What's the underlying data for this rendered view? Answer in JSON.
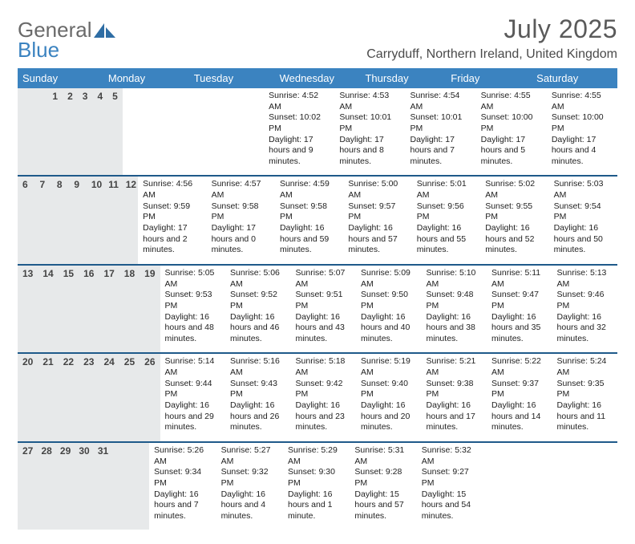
{
  "logo": {
    "general": "General",
    "blue": "Blue"
  },
  "title": "July 2025",
  "location": "Carryduff, Northern Ireland, United Kingdom",
  "colors": {
    "header_bar": "#3b83c0",
    "week_divider": "#1f5a8a",
    "daynum_bg": "#e7e9ea",
    "title_color": "#5a5a5a",
    "text_color": "#222222",
    "background": "#ffffff"
  },
  "typography": {
    "title_fontsize": 32,
    "location_fontsize": 16,
    "dow_fontsize": 13,
    "daynum_fontsize": 12,
    "body_fontsize": 10.5,
    "font_family": "Arial"
  },
  "dow": [
    "Sunday",
    "Monday",
    "Tuesday",
    "Wednesday",
    "Thursday",
    "Friday",
    "Saturday"
  ],
  "weeks": [
    [
      {
        "n": "",
        "sr": "",
        "ss": "",
        "dl": ""
      },
      {
        "n": "",
        "sr": "",
        "ss": "",
        "dl": ""
      },
      {
        "n": "1",
        "sr": "Sunrise: 4:52 AM",
        "ss": "Sunset: 10:02 PM",
        "dl": "Daylight: 17 hours and 9 minutes."
      },
      {
        "n": "2",
        "sr": "Sunrise: 4:53 AM",
        "ss": "Sunset: 10:01 PM",
        "dl": "Daylight: 17 hours and 8 minutes."
      },
      {
        "n": "3",
        "sr": "Sunrise: 4:54 AM",
        "ss": "Sunset: 10:01 PM",
        "dl": "Daylight: 17 hours and 7 minutes."
      },
      {
        "n": "4",
        "sr": "Sunrise: 4:55 AM",
        "ss": "Sunset: 10:00 PM",
        "dl": "Daylight: 17 hours and 5 minutes."
      },
      {
        "n": "5",
        "sr": "Sunrise: 4:55 AM",
        "ss": "Sunset: 10:00 PM",
        "dl": "Daylight: 17 hours and 4 minutes."
      }
    ],
    [
      {
        "n": "6",
        "sr": "Sunrise: 4:56 AM",
        "ss": "Sunset: 9:59 PM",
        "dl": "Daylight: 17 hours and 2 minutes."
      },
      {
        "n": "7",
        "sr": "Sunrise: 4:57 AM",
        "ss": "Sunset: 9:58 PM",
        "dl": "Daylight: 17 hours and 0 minutes."
      },
      {
        "n": "8",
        "sr": "Sunrise: 4:59 AM",
        "ss": "Sunset: 9:58 PM",
        "dl": "Daylight: 16 hours and 59 minutes."
      },
      {
        "n": "9",
        "sr": "Sunrise: 5:00 AM",
        "ss": "Sunset: 9:57 PM",
        "dl": "Daylight: 16 hours and 57 minutes."
      },
      {
        "n": "10",
        "sr": "Sunrise: 5:01 AM",
        "ss": "Sunset: 9:56 PM",
        "dl": "Daylight: 16 hours and 55 minutes."
      },
      {
        "n": "11",
        "sr": "Sunrise: 5:02 AM",
        "ss": "Sunset: 9:55 PM",
        "dl": "Daylight: 16 hours and 52 minutes."
      },
      {
        "n": "12",
        "sr": "Sunrise: 5:03 AM",
        "ss": "Sunset: 9:54 PM",
        "dl": "Daylight: 16 hours and 50 minutes."
      }
    ],
    [
      {
        "n": "13",
        "sr": "Sunrise: 5:05 AM",
        "ss": "Sunset: 9:53 PM",
        "dl": "Daylight: 16 hours and 48 minutes."
      },
      {
        "n": "14",
        "sr": "Sunrise: 5:06 AM",
        "ss": "Sunset: 9:52 PM",
        "dl": "Daylight: 16 hours and 46 minutes."
      },
      {
        "n": "15",
        "sr": "Sunrise: 5:07 AM",
        "ss": "Sunset: 9:51 PM",
        "dl": "Daylight: 16 hours and 43 minutes."
      },
      {
        "n": "16",
        "sr": "Sunrise: 5:09 AM",
        "ss": "Sunset: 9:50 PM",
        "dl": "Daylight: 16 hours and 40 minutes."
      },
      {
        "n": "17",
        "sr": "Sunrise: 5:10 AM",
        "ss": "Sunset: 9:48 PM",
        "dl": "Daylight: 16 hours and 38 minutes."
      },
      {
        "n": "18",
        "sr": "Sunrise: 5:11 AM",
        "ss": "Sunset: 9:47 PM",
        "dl": "Daylight: 16 hours and 35 minutes."
      },
      {
        "n": "19",
        "sr": "Sunrise: 5:13 AM",
        "ss": "Sunset: 9:46 PM",
        "dl": "Daylight: 16 hours and 32 minutes."
      }
    ],
    [
      {
        "n": "20",
        "sr": "Sunrise: 5:14 AM",
        "ss": "Sunset: 9:44 PM",
        "dl": "Daylight: 16 hours and 29 minutes."
      },
      {
        "n": "21",
        "sr": "Sunrise: 5:16 AM",
        "ss": "Sunset: 9:43 PM",
        "dl": "Daylight: 16 hours and 26 minutes."
      },
      {
        "n": "22",
        "sr": "Sunrise: 5:18 AM",
        "ss": "Sunset: 9:42 PM",
        "dl": "Daylight: 16 hours and 23 minutes."
      },
      {
        "n": "23",
        "sr": "Sunrise: 5:19 AM",
        "ss": "Sunset: 9:40 PM",
        "dl": "Daylight: 16 hours and 20 minutes."
      },
      {
        "n": "24",
        "sr": "Sunrise: 5:21 AM",
        "ss": "Sunset: 9:38 PM",
        "dl": "Daylight: 16 hours and 17 minutes."
      },
      {
        "n": "25",
        "sr": "Sunrise: 5:22 AM",
        "ss": "Sunset: 9:37 PM",
        "dl": "Daylight: 16 hours and 14 minutes."
      },
      {
        "n": "26",
        "sr": "Sunrise: 5:24 AM",
        "ss": "Sunset: 9:35 PM",
        "dl": "Daylight: 16 hours and 11 minutes."
      }
    ],
    [
      {
        "n": "27",
        "sr": "Sunrise: 5:26 AM",
        "ss": "Sunset: 9:34 PM",
        "dl": "Daylight: 16 hours and 7 minutes."
      },
      {
        "n": "28",
        "sr": "Sunrise: 5:27 AM",
        "ss": "Sunset: 9:32 PM",
        "dl": "Daylight: 16 hours and 4 minutes."
      },
      {
        "n": "29",
        "sr": "Sunrise: 5:29 AM",
        "ss": "Sunset: 9:30 PM",
        "dl": "Daylight: 16 hours and 1 minute."
      },
      {
        "n": "30",
        "sr": "Sunrise: 5:31 AM",
        "ss": "Sunset: 9:28 PM",
        "dl": "Daylight: 15 hours and 57 minutes."
      },
      {
        "n": "31",
        "sr": "Sunrise: 5:32 AM",
        "ss": "Sunset: 9:27 PM",
        "dl": "Daylight: 15 hours and 54 minutes."
      },
      {
        "n": "",
        "sr": "",
        "ss": "",
        "dl": ""
      },
      {
        "n": "",
        "sr": "",
        "ss": "",
        "dl": ""
      }
    ]
  ]
}
